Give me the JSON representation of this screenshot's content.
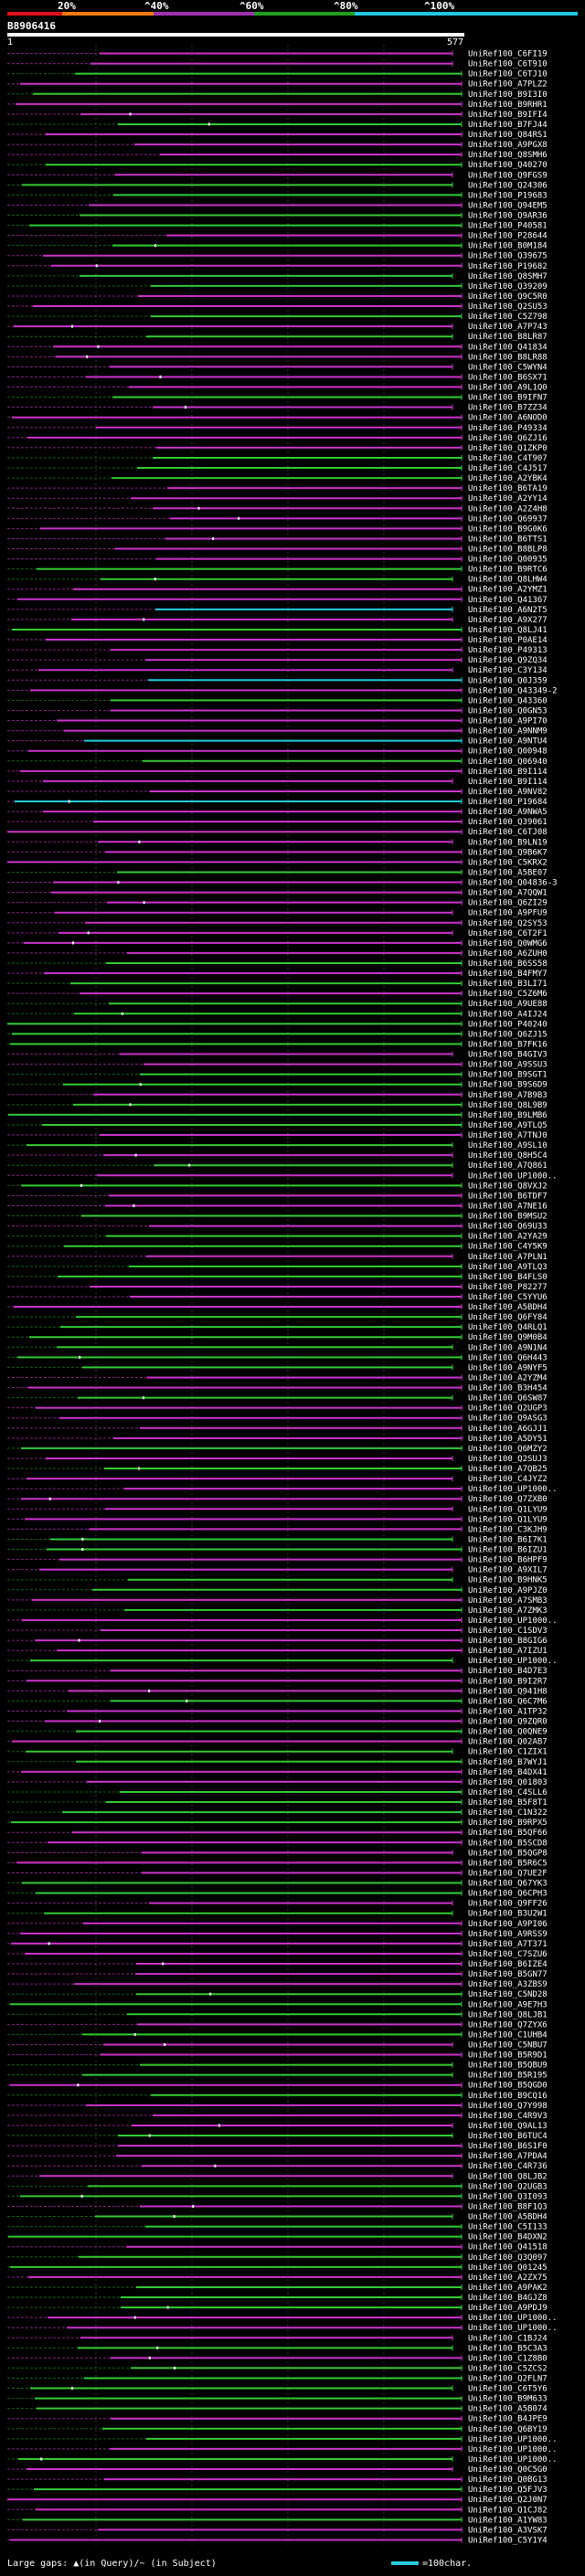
{
  "header": {
    "percent_labels": [
      "20%",
      "^40%",
      "^60%",
      "^80%",
      "^100%"
    ],
    "bar_colors": [
      "#e0101a",
      "#f07a10",
      "#a030b0",
      "#20a020",
      "#20c8e0"
    ],
    "query_id": "B8906416",
    "query_start": "1",
    "query_end": "577"
  },
  "footer": {
    "large_gaps_text": "Large gaps: ▲(in Query)/~ (in Subject)",
    "scale_text": "=100char."
  },
  "hits": [
    "UniRef100_C6FI19",
    "UniRef100_C6T910",
    "UniRef100_C6TJ10",
    "UniRef100_A7PLZ2",
    "UniRef100_B9I3I0",
    "UniRef100_B9RHR1",
    "UniRef100_B9IFI4",
    "UniRef100_B7FJ44",
    "UniRef100_Q84RS1",
    "UniRef100_A9PGX8",
    "UniRef100_Q8SMH6",
    "UniRef100_Q40270",
    "UniRef100_Q9FGS9",
    "UniRef100_Q24306",
    "UniRef100_P19683",
    "UniRef100_Q94EM5",
    "UniRef100_Q9AR36",
    "UniRef100_P40581",
    "UniRef100_P28644",
    "UniRef100_B0M184",
    "UniRef100_Q39675",
    "UniRef100_P19682",
    "UniRef100_Q8SMH7",
    "UniRef100_Q39209",
    "UniRef100_Q9C5R0",
    "UniRef100_Q2SU53",
    "UniRef100_C5Z798",
    "UniRef100_A7P743",
    "UniRef100_B8LR87",
    "UniRef100_Q41834",
    "UniRef100_B8LR88",
    "UniRef100_C5WYN4",
    "UniRef100_B6SX71",
    "UniRef100_A9L1Q0",
    "UniRef100_B9IFN7",
    "UniRef100_B7ZZ34",
    "UniRef100_A6NOD0",
    "UniRef100_P49334",
    "UniRef100_Q6ZJ16",
    "UniRef100_Q1ZKP0",
    "UniRef100_C4T907",
    "UniRef100_C4J517",
    "UniRef100_A2YBK4",
    "UniRef100_B6TA19",
    "UniRef100_A2YY14",
    "UniRef100_A2Z4H8",
    "UniRef100_Q69937",
    "UniRef100_B9G0K6",
    "UniRef100_B6TTS1",
    "UniRef100_B8BLP8",
    "UniRef100_Q00935",
    "UniRef100_B9RTC6",
    "UniRef100_Q8LHW4",
    "UniRef100_A2YMZ1",
    "UniRef100_Q41367",
    "UniRef100_A6N2T5",
    "UniRef100_A9X277",
    "UniRef100_Q8LJ41",
    "UniRef100_P0AE14",
    "UniRef100_P49313",
    "UniRef100_Q9ZQ34",
    "UniRef100_C3Y134",
    "UniRef100_Q0J359",
    "UniRef100_Q43349-2",
    "UniRef100_Q43360",
    "UniRef100_Q0GN53",
    "UniRef100_A9PI70",
    "UniRef100_A9NNM9",
    "UniRef100_A9NTU4",
    "UniRef100_Q00948",
    "UniRef100_Q06940",
    "UniRef100_B9I114",
    "UniRef100_B9I114",
    "UniRef100_A9NV82",
    "UniRef100_P19684",
    "UniRef100_A9NWA5",
    "UniRef100_Q39061",
    "UniRef100_C6TJ08",
    "UniRef100_B9LN19",
    "UniRef100_Q9B6K7",
    "UniRef100_C5KRX2",
    "UniRef100_A5BE07",
    "UniRef100_Q04836-3",
    "UniRef100_A7QQW1",
    "UniRef100_Q6ZI29",
    "UniRef100_A9PFU9",
    "UniRef100_Q2SY53",
    "UniRef100_C6T2F1",
    "UniRef100_Q0WMG6",
    "UniRef100_A6ZUH0",
    "UniRef100_B6SS58",
    "UniRef100_B4FMY7",
    "UniRef100_B3LI71",
    "UniRef100_C5Z6M6",
    "UniRef100_A9UE88",
    "UniRef100_A4IJ24",
    "UniRef100_P40240",
    "UniRef100_Q6ZJ15",
    "UniRef100_B7FK16",
    "UniRef100_B4GIV3",
    "UniRef100_A9SSU3",
    "UniRef100_B9SGT1",
    "UniRef100_B9S6D9",
    "UniRef100_A7B9B3",
    "UniRef100_Q8L9B9",
    "UniRef100_B9LMB6",
    "UniRef100_A9TLQ5",
    "UniRef100_A7TNJ0",
    "UniRef100_A9SL10",
    "UniRef100_Q8H5C4",
    "UniRef100_A7Q861",
    "UniRef100_UP1000..",
    "UniRef100_Q8VXJ2",
    "UniRef100_B6TDF7",
    "UniRef100_A7NE16",
    "UniRef100_B9MSU2",
    "UniRef100_Q69U33",
    "UniRef100_A2YA29",
    "UniRef100_C4Y5K9",
    "UniRef100_A7PLN1",
    "UniRef100_A9TLQ3",
    "UniRef100_B4FLS0",
    "UniRef100_P82277",
    "UniRef100_C5YYU6",
    "UniRef100_A5BDH4",
    "UniRef100_Q6FY84",
    "UniRef100_Q4RLQ1",
    "UniRef100_Q9M0B4",
    "UniRef100_A9N1N4",
    "UniRef100_Q6H443",
    "UniRef100_A9NYF5",
    "UniRef100_A2YZM4",
    "UniRef100_B3H454",
    "UniRef100_Q6SW87",
    "UniRef100_Q2UGP3",
    "UniRef100_Q9ASG3",
    "UniRef100_A6GJJ1",
    "UniRef100_A5DY51",
    "UniRef100_Q6MZY2",
    "UniRef100_Q2SUJ3",
    "UniRef100_A7QB25",
    "UniRef100_C4JYZ2",
    "UniRef100_UP1000..",
    "UniRef100_Q7ZXB0",
    "UniRef100_Q1LYU9",
    "UniRef100_Q1LYU9",
    "UniRef100_C3KJH9",
    "UniRef100_B6I7K1",
    "UniRef100_B6IZU1",
    "UniRef100_B6HPF9",
    "UniRef100_A9XIL7",
    "UniRef100_B9HNK5",
    "UniRef100_A9PJZ0",
    "UniRef100_A7SMB3",
    "UniRef100_A7ZMK3",
    "UniRef100_UP1000..",
    "UniRef100_C1SDV3",
    "UniRef100_B8GIG6",
    "UniRef100_A7IZU1",
    "UniRef100_UP1000..",
    "UniRef100_B4D7E3",
    "UniRef100_B9I2R7",
    "UniRef100_Q941H8",
    "UniRef100_Q6C7M6",
    "UniRef100_A1TP32",
    "UniRef100_Q9ZQR0",
    "UniRef100_Q0QNE9",
    "UniRef100_Q02AB7",
    "UniRef100_C1ZIX1",
    "UniRef100_B7WYJ1",
    "UniRef100_B4DX41",
    "UniRef100_Q01803",
    "UniRef100_C4SLL6",
    "UniRef100_B5F8T1",
    "UniRef100_C1N322",
    "UniRef100_B9RPX5",
    "UniRef100_B5QF66",
    "UniRef100_B5SCD8",
    "UniRef100_B5QGP8",
    "UniRef100_B5R6C5",
    "UniRef100_Q7UE2F",
    "UniRef100_Q67YK3",
    "UniRef100_Q6CPH3",
    "UniRef100_Q9FF26",
    "UniRef100_B3U2W1",
    "UniRef100_A9PI06",
    "UniRef100_A9RSS9",
    "UniRef100_A7T371",
    "UniRef100_C7SZU6",
    "UniRef100_B6IZE4",
    "UniRef100_B5GN77",
    "UniRef100_A3ZBS9",
    "UniRef100_C5ND28",
    "UniRef100_A9E7H3",
    "UniRef100_Q8LJB1",
    "UniRef100_Q7ZYX6",
    "UniRef100_C1UHB4",
    "UniRef100_C5NBU7",
    "UniRef100_B5R9D1",
    "UniRef100_B5QBU9",
    "UniRef100_B5R195",
    "UniRef100_B5QGD0",
    "UniRef100_B9CQ16",
    "UniRef100_Q7Y998",
    "UniRef100_C4R9V3",
    "UniRef100_Q9AL13",
    "UniRef100_B6TUC4",
    "UniRef100_B6S1F0",
    "UniRef100_A7PDA4",
    "UniRef100_C4R736",
    "UniRef100_Q8LJB2",
    "UniRef100_Q2UGB3",
    "UniRef100_Q3I093",
    "UniRef100_B8F1Q3",
    "UniRef100_A5BDH4",
    "UniRef100_C5I133",
    "UniRef100_B4DXN2",
    "UniRef100_Q41518",
    "UniRef100_Q3Q097",
    "UniRef100_Q01245",
    "UniRef100_A2ZX75",
    "UniRef100_A9PAK2",
    "UniRef100_B4GJZ8",
    "UniRef100_A9PDJ9",
    "UniRef100_UP1000..",
    "UniRef100_UP1000..",
    "UniRef100_C1BJ24",
    "UniRef100_B5C3A3",
    "UniRef100_C1Z8B0",
    "UniRef100_C5ZCS2",
    "UniRef100_Q2FLN7",
    "UniRef100_C6T5Y6",
    "UniRef100_B9M633",
    "UniRef100_A5B074",
    "UniRef100_B4JPE9",
    "UniRef100_Q6BY19",
    "UniRef100_UP1000..",
    "UniRef100_UP1000..",
    "UniRef100_UP1000..",
    "UniRef100_Q0C5G0",
    "UniRef100_Q0BG13",
    "UniRef100_Q5FJV3",
    "UniRef100_Q2J0N7",
    "UniRef100_Q1CJ82",
    "UniRef100_A1YW83",
    "UniRef100_A3VSK7",
    "UniRef100_C5Y1Y4"
  ]
}
